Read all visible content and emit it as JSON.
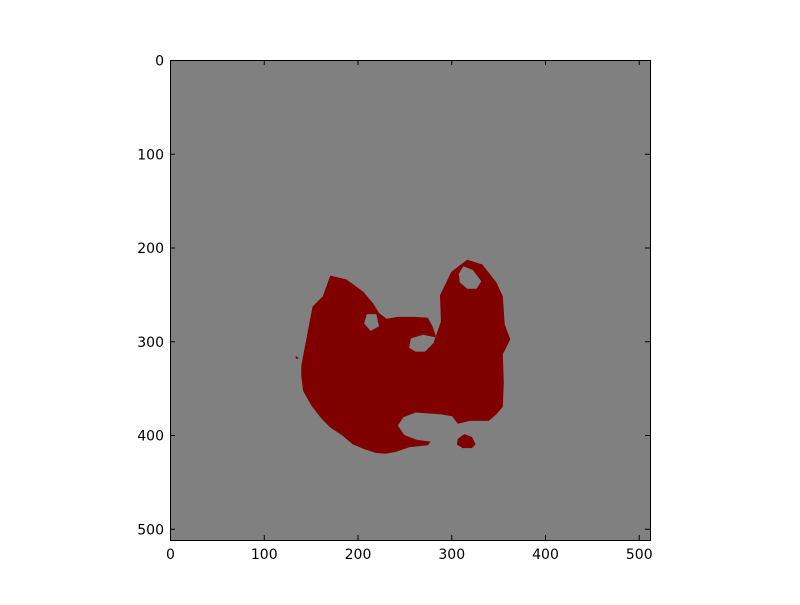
{
  "chart_data": {
    "type": "heatmap",
    "title": "",
    "xlabel": "",
    "ylabel": "",
    "xlim": [
      0,
      512
    ],
    "ylim": [
      512,
      0
    ],
    "x_ticks": [
      0,
      100,
      200,
      300,
      400,
      500
    ],
    "y_ticks": [
      0,
      100,
      200,
      300,
      400,
      500
    ],
    "x_tick_labels": [
      "0",
      "100",
      "200",
      "300",
      "400",
      "500"
    ],
    "y_tick_labels": [
      "0",
      "100",
      "200",
      "300",
      "400",
      "500"
    ],
    "background_value_color": "#808080",
    "mask_color": "#800000",
    "mask_regions": [
      {
        "name": "main-mask-region",
        "outline": [
          [
            140,
            326
          ],
          [
            152,
            263
          ],
          [
            163,
            252
          ],
          [
            171,
            230
          ],
          [
            188,
            234
          ],
          [
            206,
            247
          ],
          [
            217,
            260
          ],
          [
            223,
            270
          ],
          [
            231,
            276
          ],
          [
            243,
            274
          ],
          [
            262,
            274
          ],
          [
            275,
            275
          ],
          [
            280,
            284
          ],
          [
            284,
            296
          ],
          [
            270,
            293
          ],
          [
            257,
            297
          ],
          [
            255,
            307
          ],
          [
            262,
            311
          ],
          [
            272,
            311
          ],
          [
            281,
            302
          ],
          [
            289,
            279
          ],
          [
            288,
            251
          ],
          [
            300,
            226
          ],
          [
            317,
            213
          ],
          [
            333,
            218
          ],
          [
            348,
            237
          ],
          [
            355,
            252
          ],
          [
            357,
            282
          ],
          [
            363,
            298
          ],
          [
            355,
            314
          ],
          [
            356,
            344
          ],
          [
            355,
            370
          ],
          [
            348,
            378
          ],
          [
            340,
            385
          ],
          [
            320,
            385
          ],
          [
            307,
            388
          ],
          [
            301,
            380
          ],
          [
            289,
            378
          ],
          [
            262,
            376
          ],
          [
            249,
            381
          ],
          [
            243,
            390
          ],
          [
            250,
            400
          ],
          [
            263,
            405
          ],
          [
            278,
            407
          ],
          [
            275,
            411
          ],
          [
            255,
            413
          ],
          [
            241,
            418
          ],
          [
            230,
            420
          ],
          [
            219,
            419
          ],
          [
            207,
            415
          ],
          [
            195,
            410
          ],
          [
            183,
            400
          ],
          [
            171,
            392
          ],
          [
            162,
            383
          ],
          [
            151,
            369
          ],
          [
            142,
            353
          ],
          [
            140,
            337
          ]
        ],
        "holes": [
          [
            [
              308,
              228
            ],
            [
              313,
              220
            ],
            [
              323,
              224
            ],
            [
              332,
              236
            ],
            [
              327,
              244
            ],
            [
              317,
              244
            ],
            [
              309,
              237
            ]
          ],
          [
            [
              210,
              271
            ],
            [
              220,
              271
            ],
            [
              223,
              284
            ],
            [
              214,
              289
            ],
            [
              207,
              281
            ]
          ]
        ]
      },
      {
        "name": "bottom-right-blob",
        "outline": [
          [
            307,
            404
          ],
          [
            314,
            399
          ],
          [
            322,
            402
          ],
          [
            326,
            410
          ],
          [
            322,
            414
          ],
          [
            312,
            414
          ],
          [
            306,
            410
          ]
        ],
        "holes": []
      },
      {
        "name": "left-speck",
        "outline": [
          [
            134,
            316
          ],
          [
            135,
            316
          ],
          [
            137,
            318
          ],
          [
            136,
            319
          ],
          [
            134,
            318
          ]
        ],
        "holes": []
      }
    ]
  }
}
